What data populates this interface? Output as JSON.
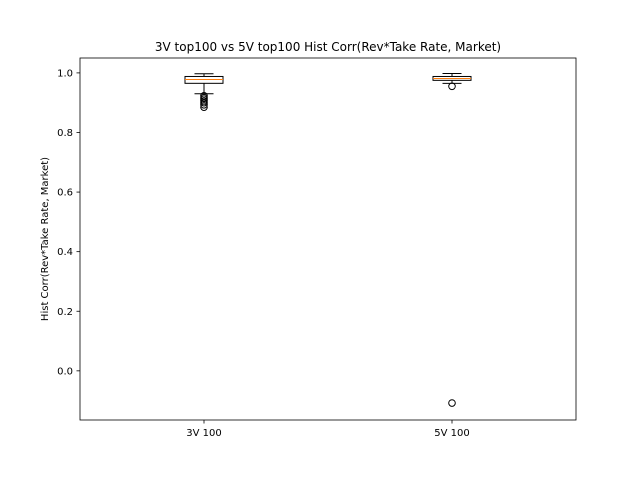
{
  "chart_data": {
    "type": "box",
    "title": "3V top100 vs 5V top100 Hist Corr(Rev*Take Rate, Market)",
    "xlabel": "",
    "ylabel": "Hist Corr(Rev*Take Rate, Market)",
    "ylim": [
      -0.165,
      1.05
    ],
    "yticks": [
      0.0,
      0.2,
      0.4,
      0.6,
      0.8,
      1.0
    ],
    "ytick_labels": [
      "0.0",
      "0.2",
      "0.4",
      "0.6",
      "0.8",
      "1.0"
    ],
    "categories": [
      "3V 100",
      "5V 100"
    ],
    "boxes": [
      {
        "label": "3V 100",
        "whisker_low": 0.93,
        "q1": 0.965,
        "median": 0.978,
        "q3": 0.988,
        "whisker_high": 0.997,
        "outliers": [
          0.923,
          0.917,
          0.912,
          0.906,
          0.9,
          0.893,
          0.885
        ]
      },
      {
        "label": "5V 100",
        "whisker_low": 0.965,
        "q1": 0.975,
        "median": 0.981,
        "q3": 0.988,
        "whisker_high": 0.998,
        "outliers": [
          0.955,
          -0.108
        ]
      }
    ],
    "colors": {
      "median": "#ff7f0e",
      "box": "#000000"
    },
    "grid": false
  }
}
